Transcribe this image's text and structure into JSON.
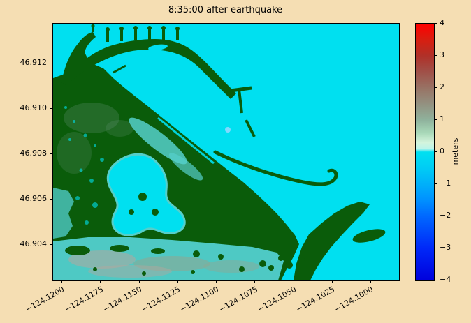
{
  "chart_data": {
    "type": "heatmap",
    "title": "8:35:00 after earthquake",
    "xlabel": "",
    "ylabel": "",
    "x_tick_labels": [
      "−124.1200",
      "−124.1175",
      "−124.1150",
      "−124.1125",
      "−124.1100",
      "−124.1075",
      "−124.1050",
      "−124.1025",
      "−124.1000"
    ],
    "x_tick_values": [
      -124.12,
      -124.1175,
      -124.115,
      -124.1125,
      -124.11,
      -124.1075,
      -124.105,
      -124.1025,
      -124.1
    ],
    "y_tick_labels": [
      "46.912",
      "46.910",
      "46.908",
      "46.906",
      "46.904"
    ],
    "y_tick_values": [
      46.912,
      46.91,
      46.908,
      46.906,
      46.904
    ],
    "xlim": [
      -124.12059,
      -124.09819
    ],
    "ylim": [
      46.90243,
      46.91375
    ],
    "grid": false,
    "legend_position": "colorbar-right",
    "colorbar": {
      "label": "meters",
      "tick_labels": [
        "4",
        "3",
        "2",
        "1",
        "0",
        "−1",
        "−2",
        "−3",
        "−4"
      ],
      "tick_values": [
        4,
        3,
        2,
        1,
        0,
        -1,
        -2,
        -3,
        -4
      ],
      "vmin": -4,
      "vmax": 4,
      "gradient": [
        {
          "v": 4.0,
          "c": "#ff0000"
        },
        {
          "v": 3.5,
          "c": "#d81e10"
        },
        {
          "v": 3.0,
          "c": "#b03028"
        },
        {
          "v": 2.5,
          "c": "#a05048"
        },
        {
          "v": 2.0,
          "c": "#987264"
        },
        {
          "v": 1.5,
          "c": "#939180"
        },
        {
          "v": 1.0,
          "c": "#8fb29c"
        },
        {
          "v": 0.6,
          "c": "#a8d8b8"
        },
        {
          "v": 0.3,
          "c": "#d4f4dc"
        },
        {
          "v": 0.1,
          "c": "#baf4ea"
        },
        {
          "v": 0.0,
          "c": "#00e0f0"
        },
        {
          "v": -0.5,
          "c": "#00ccf5"
        },
        {
          "v": -1.0,
          "c": "#00b0fa"
        },
        {
          "v": -1.5,
          "c": "#0090ff"
        },
        {
          "v": -2.0,
          "c": "#0068ff"
        },
        {
          "v": -3.0,
          "c": "#0028f8"
        },
        {
          "v": -4.0,
          "c": "#0000dc"
        }
      ]
    },
    "description": "Tsunami simulation water-surface elevation map of a harbor: cyan = water at 0 m surface elevation, dark green = dry land/topography, teal and gray-pink = tidal flats, thin green lines = jetties and breakwaters"
  },
  "colors": {
    "background": "#f5deb3",
    "water": "#00e0f0",
    "land": "#0a5c0a",
    "flats_teal": "#4ec9c4",
    "flats_gray": "#8ca995",
    "flats_pink": "#b5a69e",
    "land_texture": "#5f8f6f",
    "marsh_teal": "#55cfca",
    "dot_blue": "#8fd9ff"
  }
}
